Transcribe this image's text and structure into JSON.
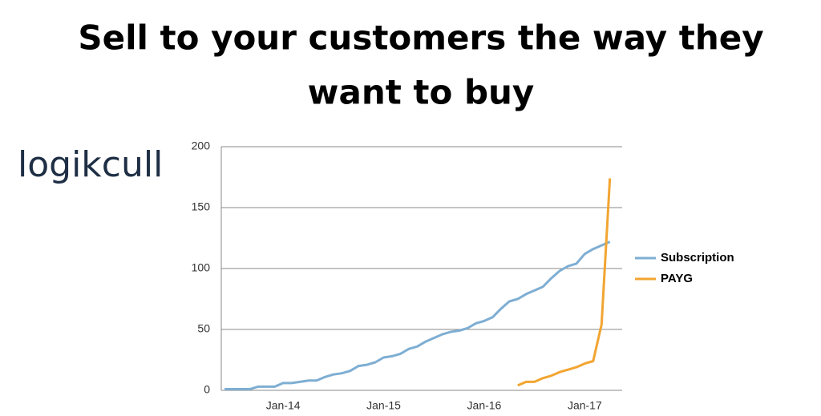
{
  "chart_data": {
    "type": "line",
    "title": [
      "Sell to your customers the way they",
      "want to buy"
    ],
    "logo": "logikcull",
    "categories": [
      null,
      null,
      null,
      null,
      null,
      null,
      null,
      "Jan-14",
      null,
      null,
      null,
      null,
      null,
      null,
      null,
      null,
      null,
      null,
      null,
      "Jan-15",
      null,
      null,
      null,
      null,
      null,
      null,
      null,
      null,
      null,
      null,
      null,
      "Jan-16",
      null,
      null,
      null,
      null,
      null,
      null,
      null,
      null,
      null,
      null,
      null,
      "Jan-17",
      null,
      null,
      null
    ],
    "series": [
      {
        "name": "Subscription",
        "color": "#7eaed3",
        "values": [
          1,
          1,
          1,
          1,
          3,
          3,
          3,
          6,
          6,
          7,
          8,
          8,
          11,
          13,
          14,
          16,
          20,
          21,
          23,
          27,
          28,
          30,
          34,
          36,
          40,
          43,
          46,
          48,
          49,
          51,
          55,
          57,
          60,
          67,
          73,
          75,
          79,
          82,
          85,
          92,
          98,
          102,
          104,
          112,
          116,
          119,
          122
        ]
      },
      {
        "name": "PAYG",
        "color": "#f2a531",
        "values": [
          null,
          null,
          null,
          null,
          null,
          null,
          null,
          null,
          null,
          null,
          null,
          null,
          null,
          null,
          null,
          null,
          null,
          null,
          null,
          null,
          null,
          null,
          null,
          null,
          null,
          null,
          null,
          null,
          null,
          null,
          null,
          null,
          null,
          null,
          null,
          4,
          7,
          7,
          10,
          12,
          15,
          17,
          19,
          22,
          24,
          54,
          174
        ]
      }
    ],
    "ylim": [
      0,
      200
    ],
    "yticks": [
      0,
      50,
      100,
      150,
      200
    ],
    "grid": true,
    "legend": "right"
  }
}
